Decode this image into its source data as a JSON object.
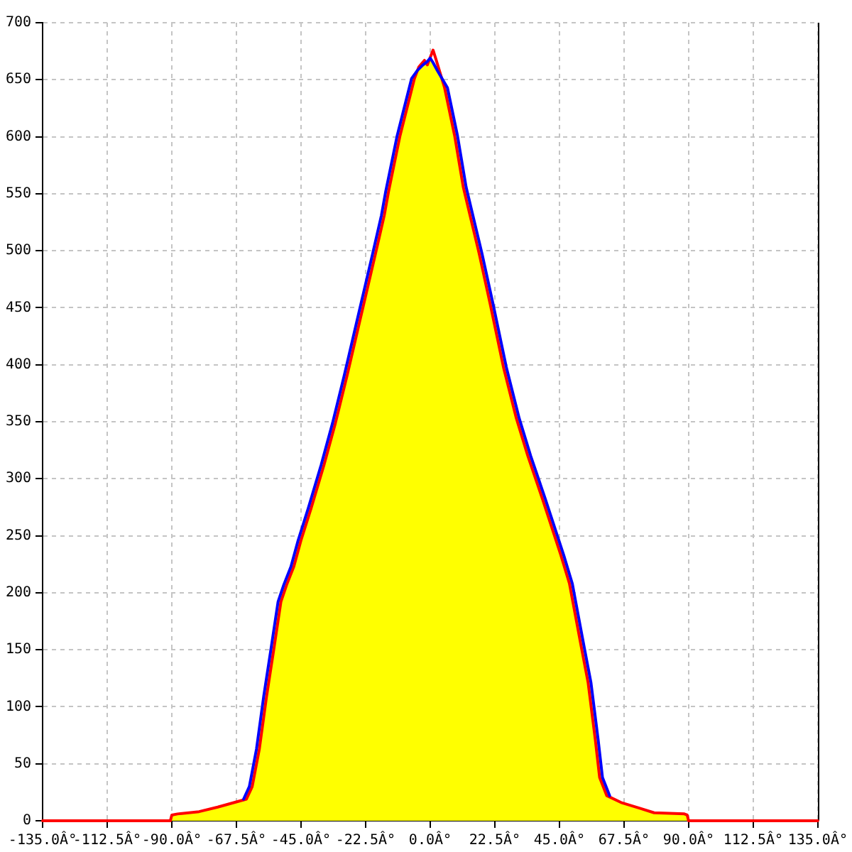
{
  "chart_data": {
    "type": "line",
    "xlim": [
      -135,
      135
    ],
    "ylim": [
      0,
      700
    ],
    "xticks": [
      {
        "value": -135,
        "label": "-135.0Â°"
      },
      {
        "value": -112.5,
        "label": "-112.5Â°"
      },
      {
        "value": -90,
        "label": "-90.0Â°"
      },
      {
        "value": -67.5,
        "label": "-67.5Â°"
      },
      {
        "value": -45,
        "label": "-45.0Â°"
      },
      {
        "value": -22.5,
        "label": "-22.5Â°"
      },
      {
        "value": 0,
        "label": "0.0Â°"
      },
      {
        "value": 22.5,
        "label": "22.5Â°"
      },
      {
        "value": 45,
        "label": "45.0Â°"
      },
      {
        "value": 67.5,
        "label": "67.5Â°"
      },
      {
        "value": 90,
        "label": "90.0Â°"
      },
      {
        "value": 112.5,
        "label": "112.5Â°"
      },
      {
        "value": 135,
        "label": "135.0Â°"
      }
    ],
    "yticks": [
      0,
      50,
      100,
      150,
      200,
      250,
      300,
      350,
      400,
      450,
      500,
      550,
      600,
      650,
      700
    ],
    "grid": true,
    "marker": "none",
    "line_style": "solid",
    "series": [
      {
        "type": "line",
        "color": "#ff0000",
        "x": [
          -135,
          -90.5,
          -90,
          -88,
          -80.5,
          -74,
          -64,
          -62,
          -59.5,
          -57,
          -54.5,
          -52,
          -50,
          -47.5,
          -45,
          -41.5,
          -37,
          -33,
          -29,
          -24,
          -19,
          -16,
          -14.5,
          -10.5,
          -5.5,
          -4,
          -2,
          -1,
          1,
          2,
          5,
          8.5,
          11.5,
          15,
          17,
          21,
          25.5,
          30,
          34,
          39,
          45.5,
          48.5,
          52.5,
          55,
          57.5,
          59,
          61.5,
          66.5,
          73,
          78,
          88.5,
          89.5,
          90,
          135
        ],
        "values": [
          0,
          0,
          5,
          6,
          8,
          12,
          19,
          30,
          63,
          109,
          150,
          192,
          207,
          223,
          246,
          274,
          312,
          349,
          390,
          444,
          498,
          531,
          552,
          601,
          651,
          661,
          667,
          663,
          676,
          668,
          643,
          601,
          556,
          519,
          498,
          452,
          398,
          353,
          320,
          283,
          233,
          208,
          154,
          121,
          71,
          38,
          22,
          16,
          11,
          7,
          6,
          5,
          0,
          0
        ]
      },
      {
        "type": "line",
        "color": "#0000ff",
        "x": [
          -65,
          -63,
          -60.5,
          -58,
          -55.5,
          -53,
          -51,
          -48.5,
          -46,
          -42.5,
          -38,
          -34,
          -30,
          -25,
          -20,
          -17,
          -15.5,
          -11.5,
          -6.5,
          -4.5,
          -2.5,
          -1,
          0,
          1,
          2.5,
          6,
          9.5,
          12.5,
          16,
          18,
          22,
          26.5,
          31,
          35,
          40,
          46.5,
          49.5,
          53.5,
          56,
          58.5,
          60,
          62.5
        ],
        "values": [
          19,
          30,
          63,
          109,
          150,
          192,
          207,
          223,
          246,
          274,
          312,
          349,
          390,
          444,
          498,
          531,
          552,
          601,
          651,
          658,
          663,
          666,
          669,
          665,
          658,
          643,
          601,
          556,
          519,
          498,
          452,
          398,
          353,
          320,
          283,
          233,
          208,
          154,
          121,
          71,
          38,
          22
        ]
      },
      {
        "type": "area",
        "color": "#ffff00",
        "x": [
          -90.5,
          -90,
          -88,
          -80.5,
          -74,
          -65,
          -63,
          -60.5,
          -58,
          -55.5,
          -53,
          -51,
          -48.5,
          -46,
          -42.5,
          -38,
          -34,
          -30,
          -25,
          -20,
          -17,
          -15.5,
          -11.5,
          -6.5,
          -4.5,
          -2.5,
          -1,
          0,
          1,
          2.5,
          6,
          9.5,
          12.5,
          16,
          18,
          22,
          26.5,
          31,
          35,
          40,
          46.5,
          49.5,
          53.5,
          56,
          58.5,
          60,
          62.5,
          66.5,
          73,
          78,
          88.5,
          89.5,
          90
        ],
        "values": [
          0,
          5,
          6,
          8,
          12,
          19,
          30,
          63,
          109,
          150,
          192,
          207,
          223,
          246,
          274,
          312,
          349,
          390,
          444,
          498,
          531,
          552,
          601,
          651,
          658,
          663,
          666,
          669,
          665,
          658,
          643,
          601,
          556,
          519,
          498,
          452,
          398,
          353,
          320,
          283,
          233,
          208,
          154,
          121,
          71,
          38,
          22,
          16,
          11,
          7,
          6,
          5,
          0
        ]
      }
    ]
  }
}
